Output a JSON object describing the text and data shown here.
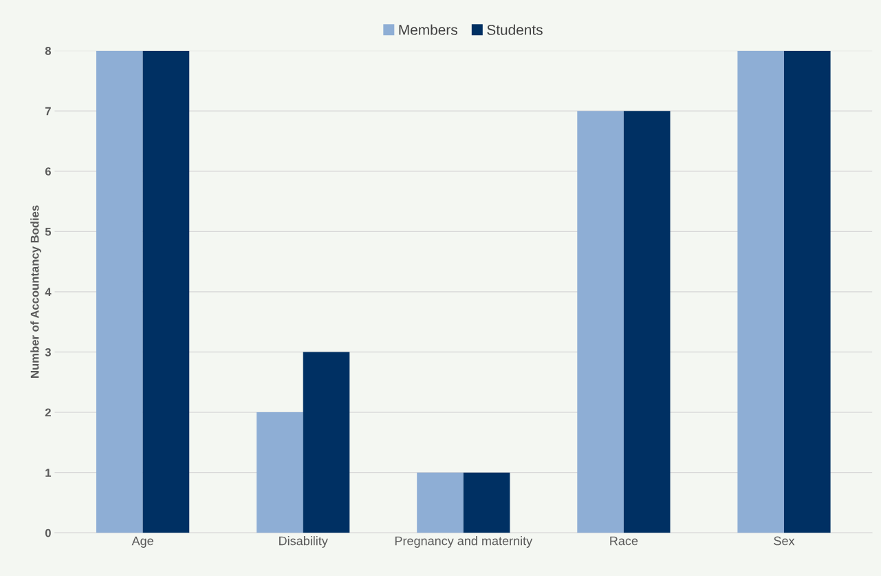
{
  "chart_data": {
    "type": "bar",
    "ylabel": "Number of Accountancy Bodies",
    "categories": [
      "Age",
      "Disability",
      "Pregnancy and maternity",
      "Race",
      "Sex"
    ],
    "series": [
      {
        "name": "Members",
        "color": "#8eaed5",
        "values": [
          8,
          2,
          1,
          7,
          8
        ]
      },
      {
        "name": "Students",
        "color": "#003063",
        "values": [
          8,
          3,
          1,
          7,
          8
        ]
      }
    ],
    "ylim": [
      0,
      8
    ],
    "yticks": [
      0,
      1,
      2,
      3,
      4,
      5,
      6,
      7,
      8
    ],
    "grid": "y",
    "legend": "top"
  }
}
